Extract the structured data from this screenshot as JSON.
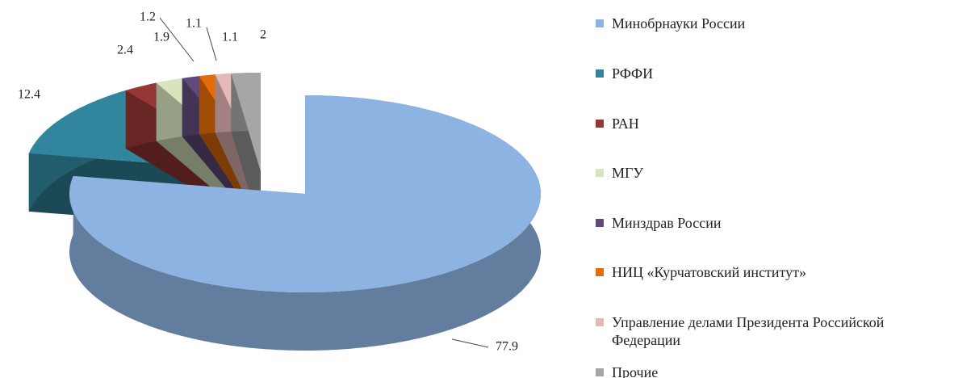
{
  "chart_data": {
    "type": "pie3d",
    "categories": [
      "Минобрнауки России",
      "РФФИ",
      "РАН",
      "МГУ",
      "Минздрав России",
      "НИЦ «Курчатовский институт»",
      "Управление делами Президента Российской Федерации",
      "Прочие"
    ],
    "values": [
      77.9,
      12.4,
      2.4,
      1.9,
      1.2,
      1.1,
      1.1,
      2.0
    ],
    "colors": [
      "#8db3e2",
      "#31859c",
      "#953735",
      "#d7e4bd",
      "#604a7b",
      "#e46c0a",
      "#e6b9b8",
      "#a6a6a6"
    ],
    "legend": "right"
  }
}
